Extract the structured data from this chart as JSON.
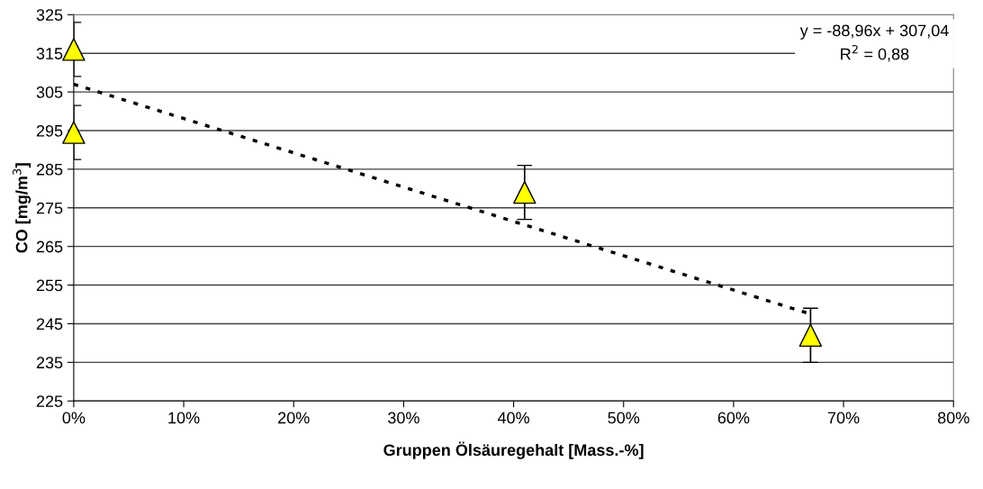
{
  "chart_data": {
    "type": "scatter",
    "xlabel": "Gruppen Ölsäuregehalt [Mass.-%]",
    "ylabel": "CO [mg/m$^{3}$]",
    "series": [
      {
        "color": "#ffff00",
        "marker": "triangle",
        "x": [
          0,
          0,
          0.41,
          0.67
        ],
        "values": [
          316,
          294.5,
          279,
          242
        ],
        "errors": [
          7,
          7,
          7,
          7
        ]
      },
      {
        "type": "line",
        "color": "#000000",
        "marker": "none",
        "line_style": "dotted",
        "x": [
          0,
          0.67
        ],
        "values": [
          307,
          247.5
        ]
      }
    ],
    "xlim": [
      0,
      0.8
    ],
    "xticks": [
      {
        "value": 0,
        "label": "0%"
      },
      {
        "value": 0.1,
        "label": "10%"
      },
      {
        "value": 0.2,
        "label": "20%"
      },
      {
        "value": 0.3,
        "label": "30%"
      },
      {
        "value": 0.4,
        "label": "40%"
      },
      {
        "value": 0.5,
        "label": "50%"
      },
      {
        "value": 0.6,
        "label": "60%"
      },
      {
        "value": 0.7,
        "label": "70%"
      },
      {
        "value": 0.8,
        "label": "80%"
      }
    ],
    "ylim": [
      225,
      325
    ],
    "yticks": [
      225,
      235,
      245,
      255,
      265,
      275,
      285,
      295,
      305,
      315,
      325
    ],
    "grid": "y",
    "annotations": [
      "y = -88,96x + 307,04\nR$^{2}$ = 0,88"
    ]
  }
}
